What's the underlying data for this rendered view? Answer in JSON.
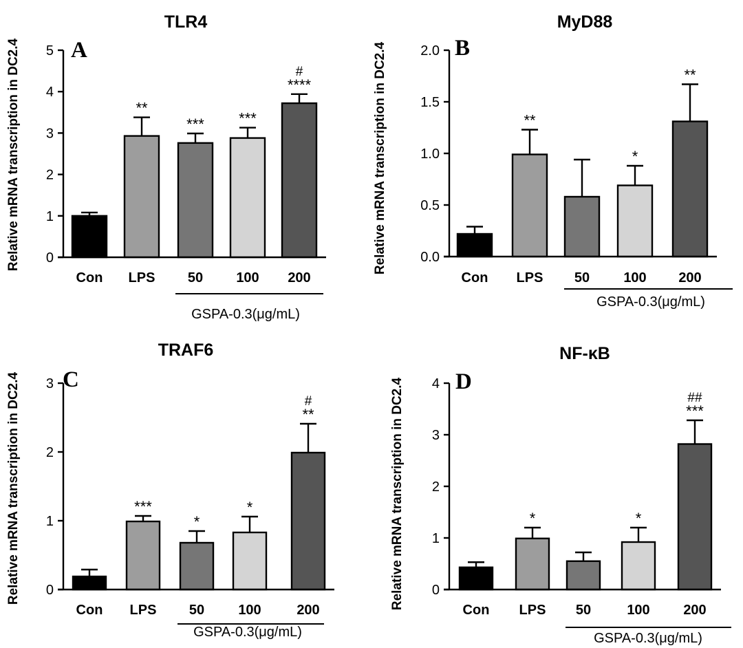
{
  "chart_data": [
    {
      "type": "bar",
      "panel_letter": "A",
      "title": "TLR4",
      "ylabel": "Relative mRNA transcription in DC2.4",
      "categories": [
        "Con",
        "LPS",
        "50",
        "100",
        "200"
      ],
      "values": [
        1.0,
        2.93,
        2.76,
        2.88,
        3.72
      ],
      "errors": [
        0.08,
        0.45,
        0.23,
        0.25,
        0.22
      ],
      "significance": [
        "",
        "**",
        "***",
        "***",
        "****"
      ],
      "hash_marks": [
        "",
        "",
        "",
        "",
        "#"
      ],
      "ylim": [
        0,
        5
      ],
      "yticks": [
        "0",
        "1",
        "2",
        "3",
        "4",
        "5"
      ],
      "group_label": "GSPA-0.3(μg/mL)",
      "colors": [
        "#000000",
        "#9d9d9d",
        "#767676",
        "#d4d4d4",
        "#555555"
      ]
    },
    {
      "type": "bar",
      "panel_letter": "B",
      "title": "MyD88",
      "ylabel": "Relative mRNA transcription in DC2.4",
      "categories": [
        "Con",
        "LPS",
        "50",
        "100",
        "200"
      ],
      "values": [
        0.22,
        0.99,
        0.58,
        0.69,
        1.31
      ],
      "errors": [
        0.07,
        0.24,
        0.36,
        0.19,
        0.36
      ],
      "significance": [
        "",
        "**",
        "",
        "*",
        "**"
      ],
      "hash_marks": [
        "",
        "",
        "",
        "",
        ""
      ],
      "ylim": [
        0,
        2.0
      ],
      "yticks": [
        "0.0",
        "0.5",
        "1.0",
        "1.5",
        "2.0"
      ],
      "group_label": "GSPA-0.3(μg/mL)",
      "colors": [
        "#000000",
        "#9d9d9d",
        "#767676",
        "#d4d4d4",
        "#555555"
      ]
    },
    {
      "type": "bar",
      "panel_letter": "C",
      "title": "TRAF6",
      "ylabel": "Relative mRNA transcription in DC2.4",
      "categories": [
        "Con",
        "LPS",
        "50",
        "100",
        "200"
      ],
      "values": [
        0.19,
        0.99,
        0.68,
        0.83,
        1.99
      ],
      "errors": [
        0.1,
        0.08,
        0.17,
        0.23,
        0.42
      ],
      "significance": [
        "",
        "***",
        "*",
        "*",
        "**"
      ],
      "hash_marks": [
        "",
        "",
        "",
        "",
        "#"
      ],
      "ylim": [
        0,
        3
      ],
      "yticks": [
        "0",
        "1",
        "2",
        "3"
      ],
      "group_label": "GSPA-0.3(μg/mL)",
      "colors": [
        "#000000",
        "#9d9d9d",
        "#767676",
        "#d4d4d4",
        "#555555"
      ]
    },
    {
      "type": "bar",
      "panel_letter": "D",
      "title": "NF-κB",
      "ylabel": "Relative mRNA transcription in DC2.4",
      "categories": [
        "Con",
        "LPS",
        "50",
        "100",
        "200"
      ],
      "values": [
        0.43,
        0.99,
        0.55,
        0.92,
        2.82
      ],
      "errors": [
        0.1,
        0.21,
        0.17,
        0.28,
        0.46
      ],
      "significance": [
        "",
        "*",
        "",
        "*",
        "***"
      ],
      "hash_marks": [
        "",
        "",
        "",
        "",
        "##"
      ],
      "ylim": [
        0,
        4
      ],
      "yticks": [
        "0",
        "1",
        "2",
        "3",
        "4"
      ],
      "group_label": "GSPA-0.3(μg/mL)",
      "colors": [
        "#000000",
        "#9d9d9d",
        "#767676",
        "#d4d4d4",
        "#555555"
      ]
    }
  ]
}
